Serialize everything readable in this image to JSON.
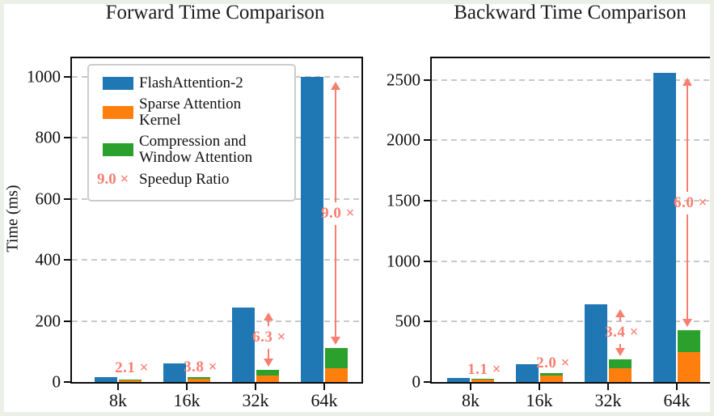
{
  "figure_titles": {
    "forward": "Forward Time Comparison",
    "backward": "Backward Time Comparison"
  },
  "colors": {
    "flash_attention": "#1f77b4",
    "sparse_kernel": "#ff7f0e",
    "compression_window": "#2ca02c",
    "speedup": "#f97e71",
    "gridline": "#c9c9c9",
    "frame": "#ecefe5"
  },
  "legend": {
    "items": [
      {
        "swatch": "#1f77b4",
        "label": "FlashAttention-2"
      },
      {
        "swatch": "#ff7f0e",
        "label": "Sparse Attention Kernel"
      },
      {
        "swatch": "#2ca02c",
        "label": "Compression and\nWindow Attention"
      },
      {
        "swatch_text": "9.0 ×",
        "label": "Speedup Ratio"
      }
    ]
  },
  "chart_data": [
    {
      "type": "bar",
      "title": "Forward Time Comparison",
      "ylabel": "Time (ms)",
      "categories": [
        "8k",
        "16k",
        "32k",
        "64k"
      ],
      "series": [
        {
          "name": "FlashAttention-2",
          "color": "#1f77b4",
          "group": "single",
          "values": [
            15,
            62,
            245,
            1000
          ]
        },
        {
          "name": "Sparse Attention Kernel",
          "color": "#ff7f0e",
          "group": "stack",
          "values": [
            5,
            10,
            22,
            45
          ]
        },
        {
          "name": "Compression and Window Attention",
          "color": "#2ca02c",
          "group": "stack",
          "values": [
            2,
            6,
            17,
            66
          ]
        }
      ],
      "speedup_labels": [
        "2.1 ×",
        "3.8 ×",
        "6.3 ×",
        "9.0 ×"
      ],
      "speedup_values": [
        2.1,
        3.8,
        6.3,
        9.0
      ],
      "yticks": [
        0,
        200,
        400,
        600,
        800,
        1000
      ],
      "ylim": [
        0,
        1060
      ],
      "grid": "horizontal-dashed",
      "legend_position": "upper-left"
    },
    {
      "type": "bar",
      "title": "Backward Time Comparison",
      "ylabel": "",
      "categories": [
        "8k",
        "16k",
        "32k",
        "64k"
      ],
      "series": [
        {
          "name": "FlashAttention-2",
          "color": "#1f77b4",
          "group": "single",
          "values": [
            34,
            150,
            640,
            2560
          ]
        },
        {
          "name": "Sparse Attention Kernel",
          "color": "#ff7f0e",
          "group": "stack",
          "values": [
            20,
            52,
            115,
            245
          ]
        },
        {
          "name": "Compression and Window Attention",
          "color": "#2ca02c",
          "group": "stack",
          "values": [
            10,
            23,
            73,
            182
          ]
        }
      ],
      "speedup_labels": [
        "1.1 ×",
        "2.0 ×",
        "3.4 ×",
        "6.0 ×"
      ],
      "speedup_values": [
        1.1,
        2.0,
        3.4,
        6.0
      ],
      "yticks": [
        0,
        500,
        1000,
        1500,
        2000,
        2500
      ],
      "ylim": [
        0,
        2680
      ],
      "grid": "horizontal-dashed",
      "legend_position": "none"
    }
  ]
}
